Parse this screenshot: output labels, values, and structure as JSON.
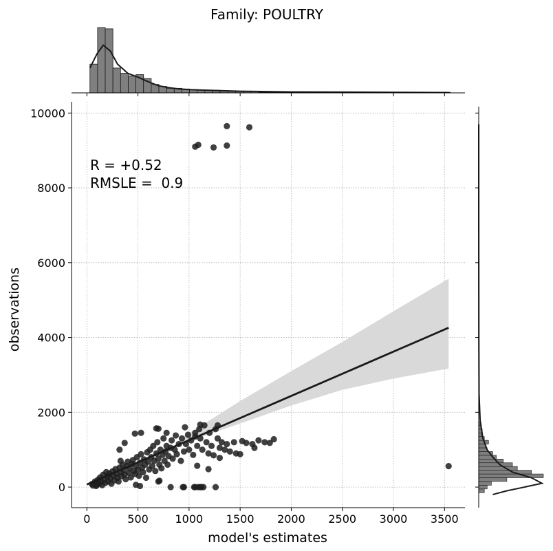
{
  "chart_data": {
    "type": "scatter",
    "title": "Family: POULTRY",
    "xlabel": "model's estimates",
    "ylabel": "observations",
    "xlim": [
      -150,
      3700
    ],
    "ylim": [
      -550,
      10300
    ],
    "xticks": [
      0,
      500,
      1000,
      1500,
      2000,
      2500,
      3000,
      3500
    ],
    "yticks": [
      0,
      2000,
      4000,
      6000,
      8000,
      10000
    ],
    "grid": true,
    "annotations": [
      "R = +0.52",
      "RMSLE =  0.9"
    ],
    "regression": {
      "x": [
        0,
        3540
      ],
      "y": [
        70,
        4260
      ]
    },
    "confidence_band": {
      "x": [
        950,
        1500,
        2000,
        2500,
        3000,
        3540
      ],
      "upper": [
        1350,
        2300,
        3100,
        3880,
        4700,
        5570
      ],
      "lower": [
        1180,
        1700,
        2180,
        2600,
        2900,
        3170
      ]
    },
    "points": [
      [
        1060,
        9100
      ],
      [
        1090,
        9150
      ],
      [
        1240,
        9080
      ],
      [
        1370,
        9650
      ],
      [
        1370,
        9130
      ],
      [
        1590,
        9620
      ],
      [
        3540,
        560
      ],
      [
        50,
        80
      ],
      [
        60,
        40
      ],
      [
        80,
        150
      ],
      [
        90,
        30
      ],
      [
        100,
        120
      ],
      [
        100,
        60
      ],
      [
        110,
        200
      ],
      [
        120,
        90
      ],
      [
        130,
        260
      ],
      [
        140,
        150
      ],
      [
        150,
        50
      ],
      [
        160,
        330
      ],
      [
        170,
        200
      ],
      [
        180,
        110
      ],
      [
        190,
        400
      ],
      [
        200,
        280
      ],
      [
        210,
        150
      ],
      [
        220,
        360
      ],
      [
        230,
        230
      ],
      [
        240,
        90
      ],
      [
        250,
        420
      ],
      [
        260,
        300
      ],
      [
        270,
        180
      ],
      [
        280,
        480
      ],
      [
        290,
        350
      ],
      [
        300,
        250
      ],
      [
        310,
        150
      ],
      [
        320,
        520
      ],
      [
        330,
        400
      ],
      [
        340,
        290
      ],
      [
        350,
        600
      ],
      [
        360,
        450
      ],
      [
        370,
        330
      ],
      [
        380,
        210
      ],
      [
        390,
        560
      ],
      [
        400,
        680
      ],
      [
        410,
        380
      ],
      [
        420,
        500
      ],
      [
        430,
        260
      ],
      [
        440,
        620
      ],
      [
        450,
        720
      ],
      [
        460,
        430
      ],
      [
        470,
        350
      ],
      [
        480,
        560
      ],
      [
        490,
        800
      ],
      [
        500,
        460
      ],
      [
        510,
        300
      ],
      [
        520,
        650
      ],
      [
        530,
        880
      ],
      [
        540,
        520
      ],
      [
        550,
        400
      ],
      [
        560,
        740
      ],
      [
        570,
        600
      ],
      [
        580,
        250
      ],
      [
        590,
        930
      ],
      [
        600,
        680
      ],
      [
        610,
        470
      ],
      [
        620,
        1000
      ],
      [
        630,
        800
      ],
      [
        640,
        560
      ],
      [
        650,
        1100
      ],
      [
        660,
        700
      ],
      [
        670,
        430
      ],
      [
        680,
        900
      ],
      [
        690,
        1200
      ],
      [
        700,
        760
      ],
      [
        710,
        600
      ],
      [
        720,
        1000
      ],
      [
        730,
        500
      ],
      [
        740,
        860
      ],
      [
        750,
        1300
      ],
      [
        760,
        700
      ],
      [
        770,
        950
      ],
      [
        780,
        1100
      ],
      [
        790,
        600
      ],
      [
        800,
        830
      ],
      [
        820,
        1050
      ],
      [
        830,
        1250
      ],
      [
        840,
        760
      ],
      [
        860,
        1000
      ],
      [
        870,
        1380
      ],
      [
        880,
        880
      ],
      [
        900,
        1150
      ],
      [
        920,
        700
      ],
      [
        930,
        1300
      ],
      [
        950,
        950
      ],
      [
        960,
        1600
      ],
      [
        970,
        1150
      ],
      [
        990,
        1400
      ],
      [
        1000,
        1000
      ],
      [
        1020,
        1250
      ],
      [
        1040,
        860
      ],
      [
        1060,
        1350
      ],
      [
        1080,
        1100
      ],
      [
        1100,
        1550
      ],
      [
        1110,
        1300
      ],
      [
        1130,
        1000
      ],
      [
        1150,
        1650
      ],
      [
        1170,
        1200
      ],
      [
        1190,
        900
      ],
      [
        1200,
        1450
      ],
      [
        1220,
        1100
      ],
      [
        1240,
        850
      ],
      [
        1260,
        1550
      ],
      [
        1280,
        1300
      ],
      [
        1300,
        1050
      ],
      [
        1320,
        1200
      ],
      [
        1350,
        1000
      ],
      [
        1370,
        1150
      ],
      [
        1400,
        950
      ],
      [
        1440,
        1200
      ],
      [
        1460,
        900
      ],
      [
        1520,
        1230
      ],
      [
        1560,
        1180
      ],
      [
        1620,
        1150
      ],
      [
        1740,
        1200
      ],
      [
        1790,
        1180
      ],
      [
        1830,
        1280
      ],
      [
        1680,
        1250
      ],
      [
        1640,
        1050
      ],
      [
        1500,
        880
      ],
      [
        1280,
        1650
      ],
      [
        1110,
        1670
      ],
      [
        1060,
        1450
      ],
      [
        680,
        1570
      ],
      [
        700,
        1560
      ],
      [
        470,
        1430
      ],
      [
        530,
        1450
      ],
      [
        780,
        1450
      ],
      [
        370,
        1180
      ],
      [
        320,
        1000
      ],
      [
        330,
        700
      ],
      [
        480,
        60
      ],
      [
        520,
        30
      ],
      [
        700,
        150
      ],
      [
        710,
        170
      ],
      [
        820,
        0
      ],
      [
        940,
        0
      ],
      [
        950,
        0
      ],
      [
        1050,
        0
      ],
      [
        1060,
        0
      ],
      [
        1090,
        0
      ],
      [
        1110,
        0
      ],
      [
        1120,
        0
      ],
      [
        1140,
        0
      ],
      [
        1260,
        0
      ],
      [
        1080,
        570
      ],
      [
        1300,
        780
      ],
      [
        1190,
        480
      ]
    ],
    "top_histogram": {
      "bin_edges_start": 30,
      "bin_width": 75,
      "counts": [
        44,
        100,
        98,
        38,
        30,
        26,
        28,
        22,
        13,
        10,
        7,
        7,
        6,
        5,
        4,
        4,
        4,
        3,
        3,
        2,
        2,
        2,
        1,
        1,
        1,
        1,
        1,
        1,
        1,
        1,
        1,
        1,
        1,
        1,
        1,
        1,
        1,
        1,
        1,
        1,
        1,
        1,
        1,
        1,
        1,
        1,
        1
      ],
      "kde": [
        [
          30,
          38
        ],
        [
          100,
          60
        ],
        [
          160,
          73
        ],
        [
          230,
          64
        ],
        [
          300,
          44
        ],
        [
          400,
          30
        ],
        [
          500,
          24
        ],
        [
          600,
          17
        ],
        [
          700,
          11
        ],
        [
          800,
          8
        ],
        [
          900,
          6
        ],
        [
          1000,
          5
        ],
        [
          1200,
          4
        ],
        [
          1500,
          2.5
        ],
        [
          2000,
          1.5
        ],
        [
          3540,
          0.5
        ]
      ]
    },
    "right_histogram": {
      "bin_edges_start": -150,
      "bin_width": 100,
      "counts": [
        8,
        12,
        18,
        40,
        92,
        75,
        55,
        48,
        35,
        25,
        20,
        12,
        10,
        14,
        8,
        4,
        5,
        3,
        2
      ],
      "kde": [
        [
          -200,
          20
        ],
        [
          -100,
          40
        ],
        [
          100,
          90
        ],
        [
          250,
          75
        ],
        [
          400,
          48
        ],
        [
          600,
          30
        ],
        [
          800,
          20
        ],
        [
          1000,
          12
        ],
        [
          1300,
          6
        ],
        [
          1800,
          2
        ],
        [
          2500,
          0.5
        ],
        [
          4000,
          0.2
        ],
        [
          6000,
          0.1
        ],
        [
          9700,
          0.05
        ]
      ]
    }
  }
}
